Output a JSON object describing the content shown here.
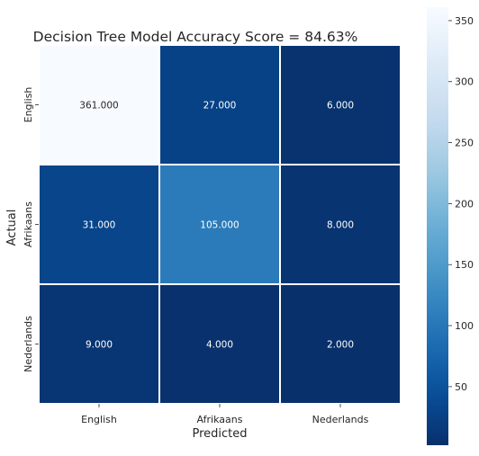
{
  "chart_data": {
    "type": "heatmap",
    "title": "Decision Tree Model Accuracy Score = 84.63%",
    "xlabel": "Predicted",
    "ylabel": "Actual",
    "x_categories": [
      "English",
      "Afrikaans",
      "Nederlands"
    ],
    "y_categories": [
      "English",
      "Afrikaans",
      "Nederlands"
    ],
    "values": [
      [
        361,
        27,
        6
      ],
      [
        31,
        105,
        8
      ],
      [
        9,
        4,
        2
      ]
    ],
    "cell_labels": [
      [
        "361.000",
        "27.000",
        "6.000"
      ],
      [
        "31.000",
        "105.000",
        "8.000"
      ],
      [
        "9.000",
        "4.000",
        "2.000"
      ]
    ],
    "colormap": "Blues_r",
    "colorbar": {
      "range": [
        2,
        361
      ],
      "ticks": [
        50,
        100,
        150,
        200,
        250,
        300,
        350
      ],
      "tick_labels": [
        "50",
        "100",
        "150",
        "200",
        "250",
        "300",
        "350"
      ]
    },
    "colors": {
      "low": "#08306b",
      "high": "#f7fbff",
      "cell_border": "#ffffff",
      "dark_text": "#262626",
      "light_text": "#ffffff"
    }
  }
}
